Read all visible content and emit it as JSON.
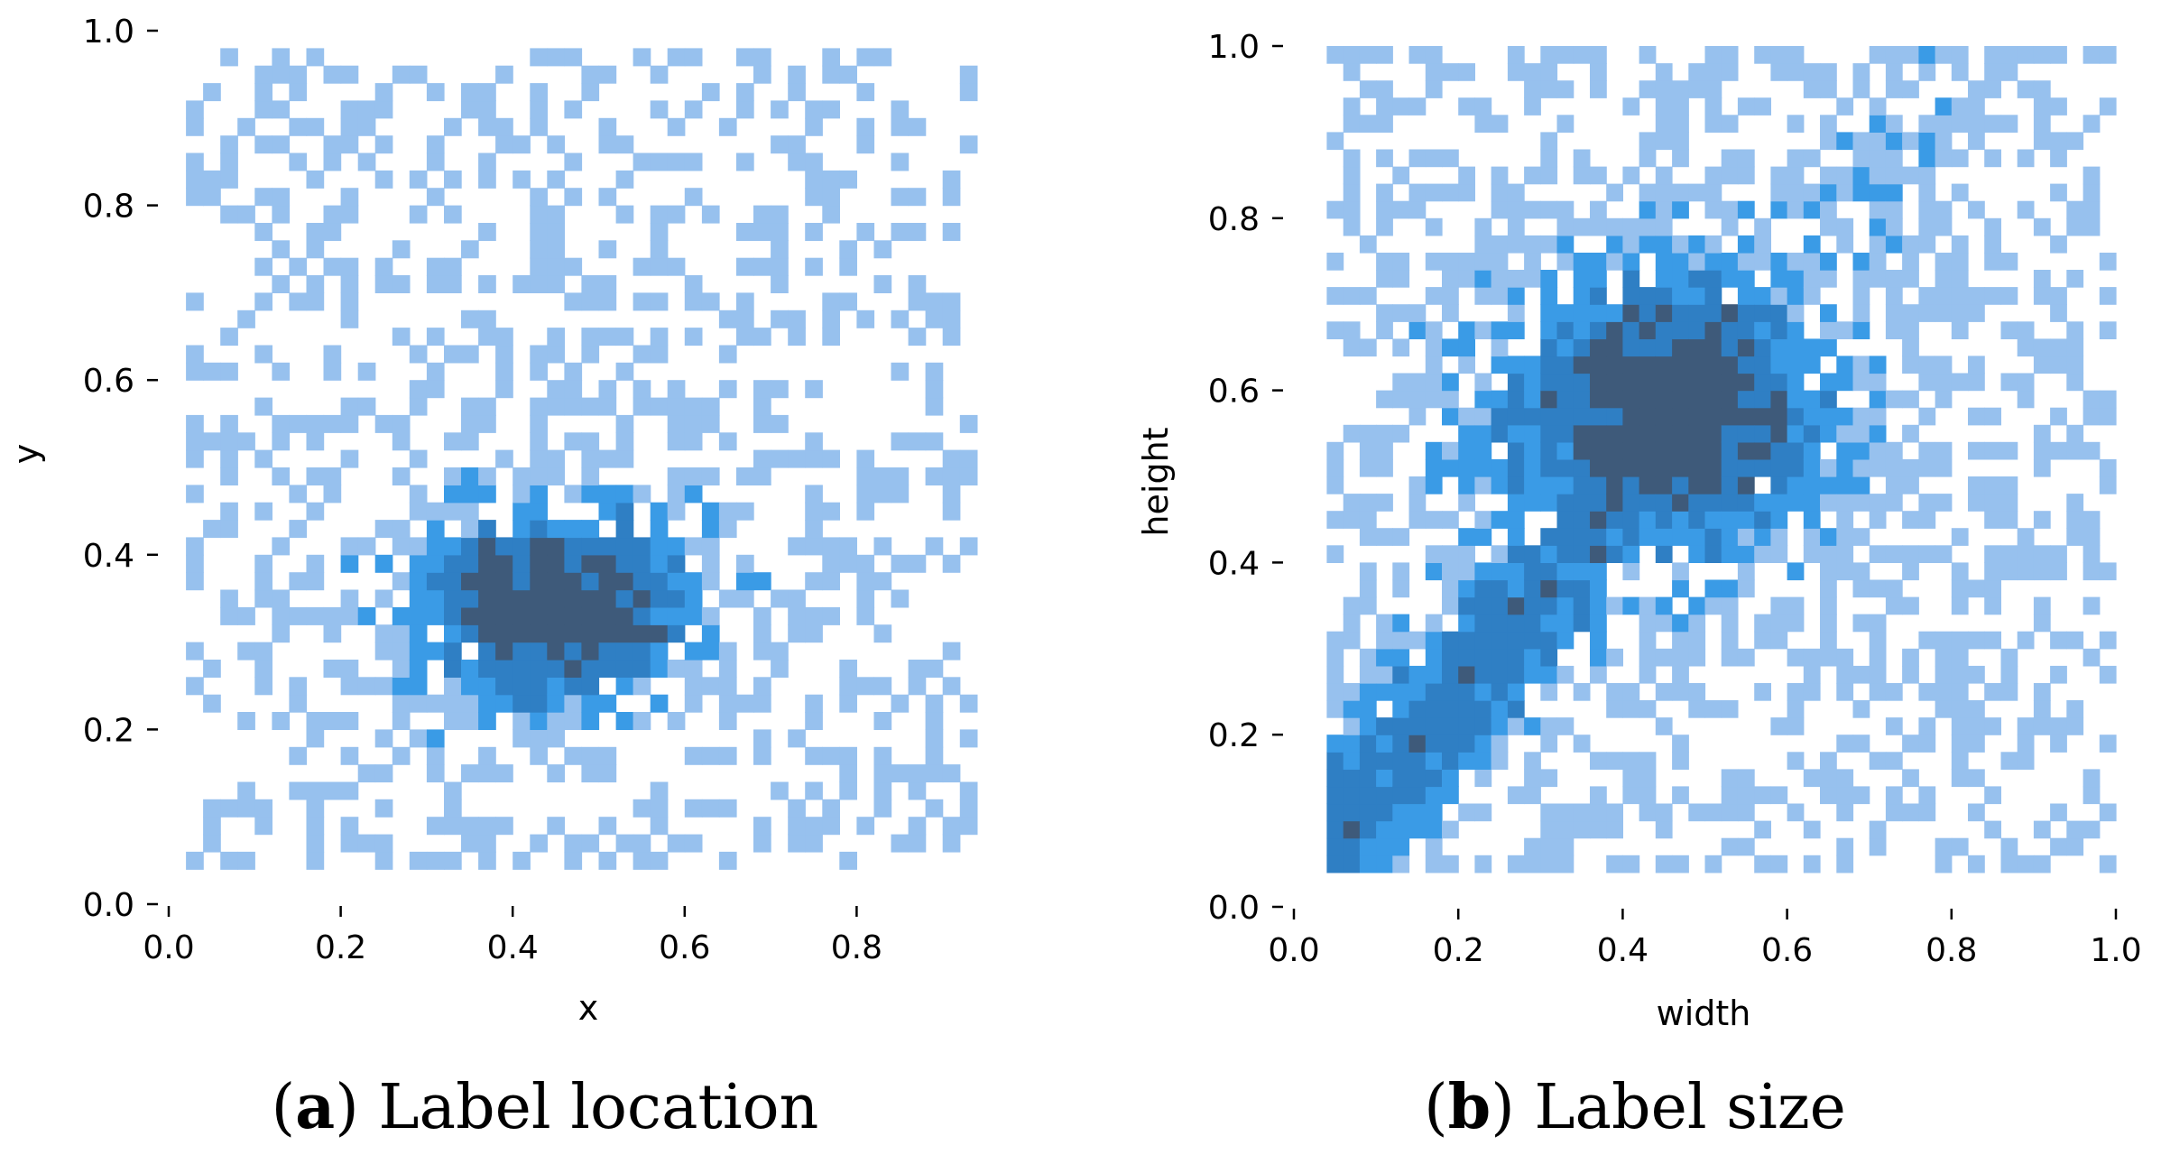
{
  "figure": {
    "panels": [
      {
        "id": "a",
        "caption_letter": "a",
        "caption_text": "Label location",
        "caption_open": "(",
        "caption_close": ") "
      },
      {
        "id": "b",
        "caption_letter": "b",
        "caption_text": "Label size",
        "caption_open": "(",
        "caption_close": ") "
      }
    ]
  },
  "colors": {
    "light": "#97c1ee",
    "medium": "#3a9be6",
    "strong": "#2f7fc4",
    "dark": "#3e5a7a"
  },
  "chart_data": [
    {
      "type": "heatmap",
      "kind": "2d-histogram",
      "title": "",
      "xlabel": "x",
      "ylabel": "y",
      "xlim": [
        0.0,
        0.95
      ],
      "ylim": [
        0.0,
        1.0
      ],
      "x_ticks": [
        0.0,
        0.2,
        0.4,
        0.6,
        0.8
      ],
      "x_tick_labels": [
        "0.0",
        "0.2",
        "0.4",
        "0.6",
        "0.8"
      ],
      "y_ticks": [
        0.0,
        0.2,
        0.4,
        0.6,
        0.8,
        1.0
      ],
      "y_tick_labels": [
        "0.0",
        "0.2",
        "0.4",
        "0.6",
        "0.8",
        "1.0"
      ],
      "bins": [
        50,
        50
      ],
      "data_x_range": [
        0.03,
        0.95
      ],
      "data_y_range": [
        0.05,
        0.98
      ],
      "density_peak": {
        "x": 0.45,
        "y": 0.34,
        "sx": 0.13,
        "sy": 0.09
      },
      "description": "Density concentrated around x≈0.45, y≈0.34"
    },
    {
      "type": "heatmap",
      "kind": "2d-histogram",
      "title": "",
      "xlabel": "width",
      "ylabel": "height",
      "xlim": [
        0.0,
        1.0
      ],
      "ylim": [
        0.0,
        1.0
      ],
      "x_ticks": [
        0.0,
        0.2,
        0.4,
        0.6,
        0.8,
        1.0
      ],
      "x_tick_labels": [
        "0.0",
        "0.2",
        "0.4",
        "0.6",
        "0.8",
        "1.0"
      ],
      "y_ticks": [
        0.0,
        0.2,
        0.4,
        0.6,
        0.8,
        1.0
      ],
      "y_tick_labels": [
        "0.0",
        "0.2",
        "0.4",
        "0.6",
        "0.8",
        "1.0"
      ],
      "bins": [
        50,
        50
      ],
      "data_x_range": [
        0.04,
        1.0
      ],
      "data_y_range": [
        0.05,
        1.0
      ],
      "density_peak": {
        "x": 0.45,
        "y": 0.58,
        "sx": 0.16,
        "sy": 0.13
      },
      "description": "Dense region around width≈0.45, height≈0.58 with a diagonal band toward the lower-left"
    }
  ]
}
